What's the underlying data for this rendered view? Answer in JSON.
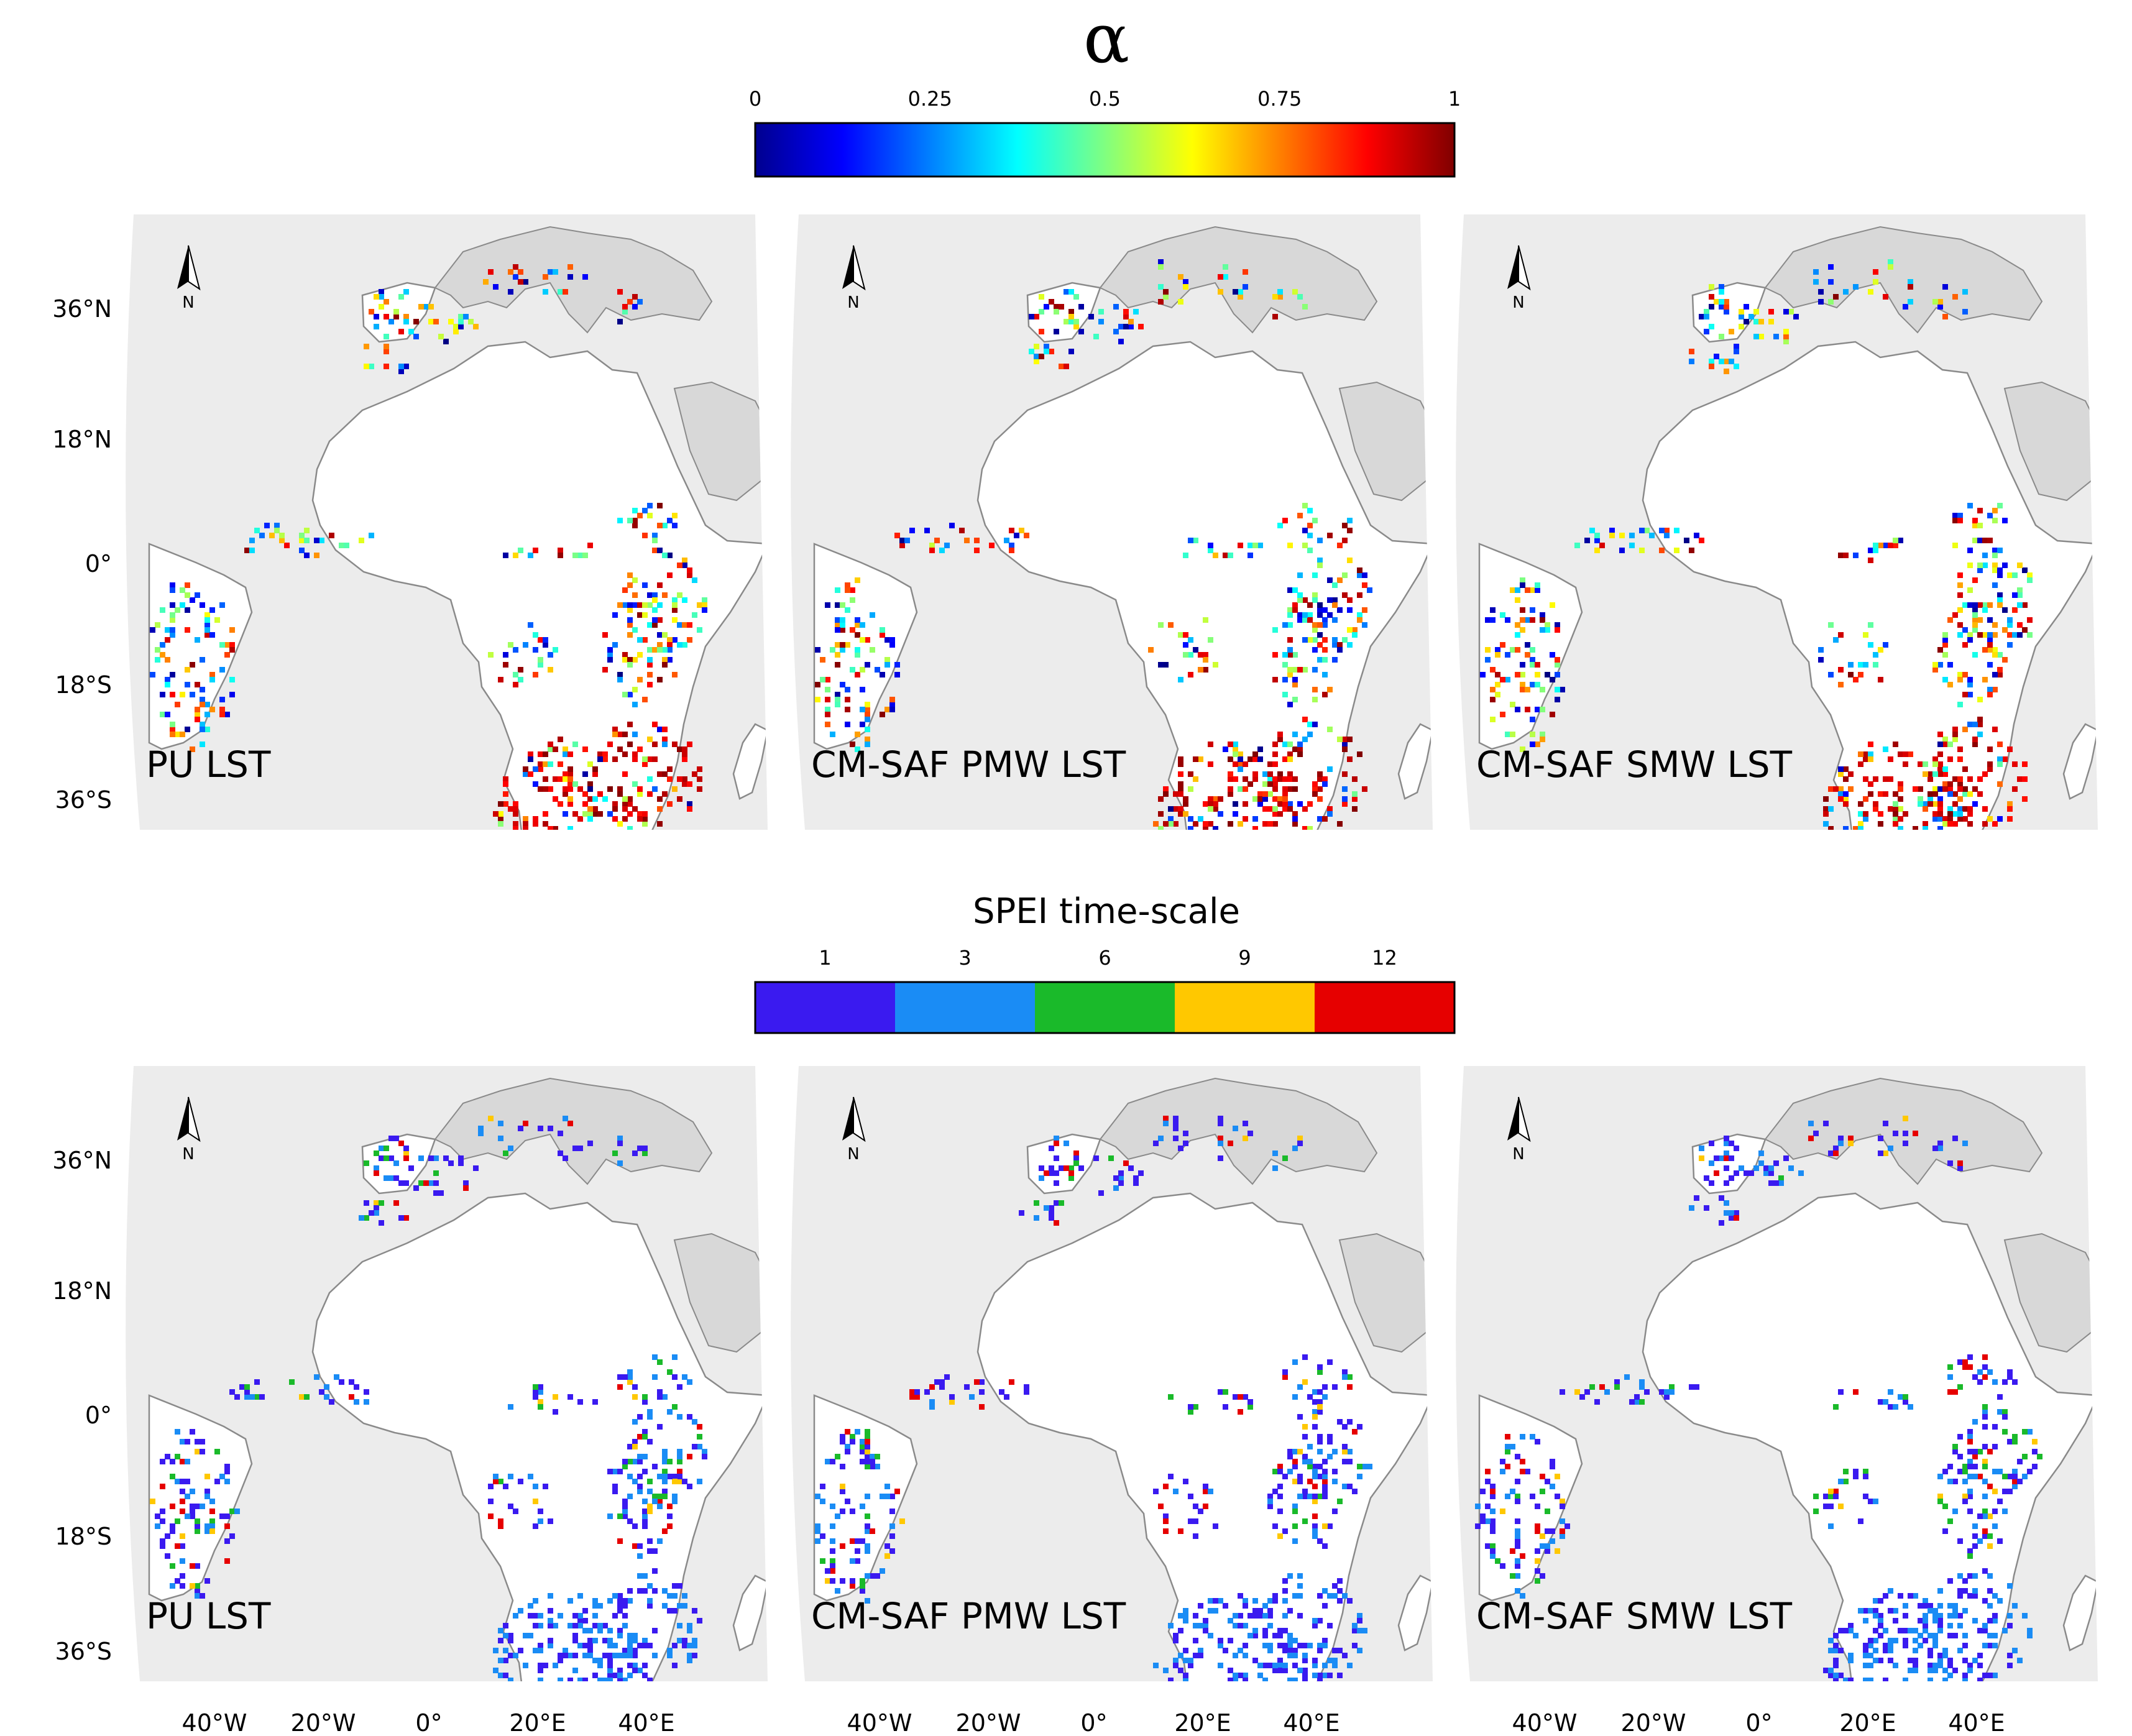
{
  "alpha_legend": {
    "title": "α",
    "ticks": [
      "0",
      "0.25",
      "0.5",
      "0.75",
      "1"
    ],
    "stops": [
      "#00008f",
      "#0000ff",
      "#0080ff",
      "#00ffff",
      "#80ff80",
      "#ffff00",
      "#ff8000",
      "#ff0000",
      "#800000"
    ]
  },
  "spei_legend": {
    "title": "SPEI time-scale",
    "classes": [
      {
        "label": "1",
        "color": "#3a1af0"
      },
      {
        "label": "3",
        "color": "#1a8cf5"
      },
      {
        "label": "6",
        "color": "#1aba2a"
      },
      {
        "label": "9",
        "color": "#ffc800"
      },
      {
        "label": "12",
        "color": "#e60000"
      }
    ]
  },
  "lat_labels": [
    "36°N",
    "18°N",
    "0°",
    "18°S",
    "36°S"
  ],
  "lon_labels": [
    "40°W",
    "20°W",
    "0°",
    "20°E",
    "40°E"
  ],
  "north_label": "N",
  "rows": [
    {
      "legend": "alpha",
      "panels": [
        {
          "label": "PU LST",
          "show_lat": true,
          "show_lon": false
        },
        {
          "label": "CM-SAF PMW LST",
          "show_lat": false,
          "show_lon": false
        },
        {
          "label": "CM-SAF SMW LST",
          "show_lat": false,
          "show_lon": false
        }
      ]
    },
    {
      "legend": "spei",
      "panels": [
        {
          "label": "PU LST",
          "show_lat": true,
          "show_lon": true
        },
        {
          "label": "CM-SAF PMW LST",
          "show_lat": false,
          "show_lon": true
        },
        {
          "label": "CM-SAF SMW LST",
          "show_lat": false,
          "show_lon": true
        }
      ]
    }
  ],
  "colors": {
    "background": "#ececec",
    "land": "#ffffff",
    "outline": "#8a8a8a",
    "text": "#000000"
  }
}
